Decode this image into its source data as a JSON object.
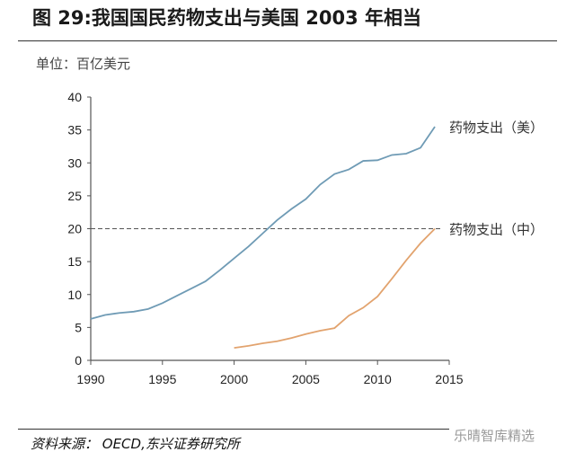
{
  "title": "图 29:我国国民药物支出与美国 2003 年相当",
  "unit_label": "单位：百亿美元",
  "source": "资料来源： OECD,东兴证券研究所",
  "watermark": "乐晴智库精选",
  "chart_data": {
    "type": "line",
    "title": "图 29:我国国民药物支出与美国 2003 年相当",
    "xlabel": "",
    "ylabel": "单位：百亿美元",
    "xlim": [
      1990,
      2015
    ],
    "ylim": [
      0,
      40
    ],
    "xticks": [
      1990,
      1995,
      2000,
      2005,
      2010,
      2015
    ],
    "yticks": [
      0,
      5,
      10,
      15,
      20,
      25,
      30,
      35,
      40
    ],
    "grid": false,
    "series": [
      {
        "name": "药物支出（美）",
        "color": "#6f9bb5",
        "x": [
          1990,
          1991,
          1992,
          1993,
          1994,
          1995,
          1996,
          1997,
          1998,
          1999,
          2000,
          2001,
          2002,
          2003,
          2004,
          2005,
          2006,
          2007,
          2008,
          2009,
          2010,
          2011,
          2012,
          2013,
          2014
        ],
        "y": [
          6.3,
          6.9,
          7.2,
          7.4,
          7.8,
          8.7,
          9.8,
          10.9,
          12.0,
          13.7,
          15.5,
          17.3,
          19.3,
          21.3,
          23.0,
          24.5,
          26.7,
          28.3,
          29.0,
          30.3,
          30.4,
          31.2,
          31.4,
          32.3,
          35.5
        ]
      },
      {
        "name": "药物支出（中）",
        "color": "#e2a36e",
        "x": [
          2000,
          2001,
          2002,
          2003,
          2004,
          2005,
          2006,
          2007,
          2008,
          2009,
          2010,
          2011,
          2012,
          2013,
          2014
        ],
        "y": [
          1.9,
          2.2,
          2.6,
          2.9,
          3.4,
          4.0,
          4.5,
          4.9,
          6.8,
          8.0,
          9.7,
          12.4,
          15.2,
          17.8,
          20.0
        ]
      }
    ],
    "reference_line": {
      "y": 20,
      "style": "dashed"
    }
  }
}
